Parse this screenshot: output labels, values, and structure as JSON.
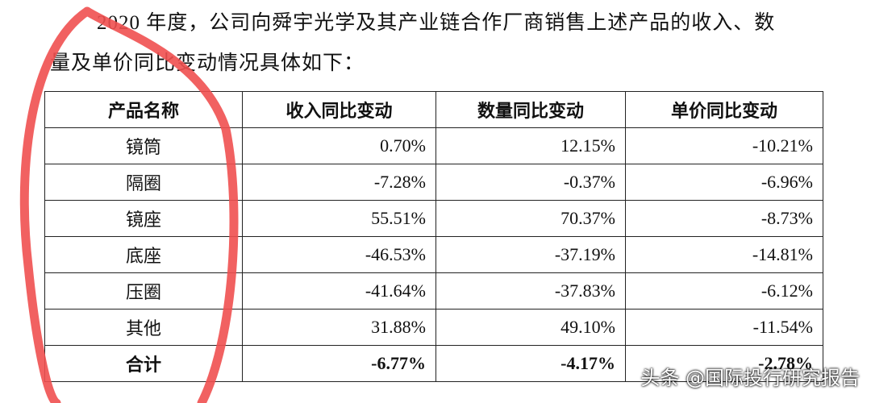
{
  "paragraph": {
    "lines": [
      "2020 年度，公司向舜宇光学及其产业链合作厂商销售上述产品的收入、数",
      "量及单价同比变动情况具体如下："
    ]
  },
  "table": {
    "header": [
      "产品名称",
      "收入同比变动",
      "数量同比变动",
      "单价同比变动"
    ],
    "rows": [
      [
        "镜筒",
        "0.70%",
        "12.15%",
        "-10.21%"
      ],
      [
        "隔圈",
        "-7.28%",
        "-0.37%",
        "-6.96%"
      ],
      [
        "镜座",
        "55.51%",
        "70.37%",
        "-8.73%"
      ],
      [
        "底座",
        "-46.53%",
        "-37.19%",
        "-14.81%"
      ],
      [
        "压圈",
        "-41.64%",
        "-37.83%",
        "-6.12%"
      ],
      [
        "其他",
        "31.88%",
        "49.10%",
        "-11.54%"
      ]
    ],
    "total": [
      "合计",
      "-6.77%",
      "-4.17%",
      "-2.78%"
    ]
  },
  "watermark": "头条 @国际投行研究报告"
}
